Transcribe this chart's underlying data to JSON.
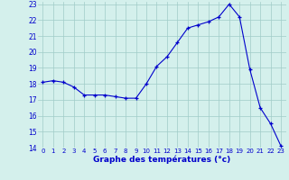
{
  "x": [
    0,
    1,
    2,
    3,
    4,
    5,
    6,
    7,
    8,
    9,
    10,
    11,
    12,
    13,
    14,
    15,
    16,
    17,
    18,
    19,
    20,
    21,
    22,
    23
  ],
  "y": [
    18.1,
    18.2,
    18.1,
    17.8,
    17.3,
    17.3,
    17.3,
    17.2,
    17.1,
    17.1,
    18.0,
    19.1,
    19.7,
    20.6,
    21.5,
    21.7,
    21.9,
    22.2,
    23.0,
    22.2,
    18.9,
    16.5,
    15.5,
    14.1
  ],
  "line_color": "#0000cc",
  "marker": "+",
  "marker_size": 3,
  "bg_color": "#d4f0ec",
  "grid_color": "#a0ccc8",
  "xlabel": "Graphe des températures (°c)",
  "xlabel_color": "#0000cc",
  "tick_color": "#0000cc",
  "ylim": [
    14,
    23
  ],
  "xlim": [
    -0.5,
    23.5
  ],
  "yticks": [
    14,
    15,
    16,
    17,
    18,
    19,
    20,
    21,
    22,
    23
  ],
  "xticks": [
    0,
    1,
    2,
    3,
    4,
    5,
    6,
    7,
    8,
    9,
    10,
    11,
    12,
    13,
    14,
    15,
    16,
    17,
    18,
    19,
    20,
    21,
    22,
    23
  ]
}
